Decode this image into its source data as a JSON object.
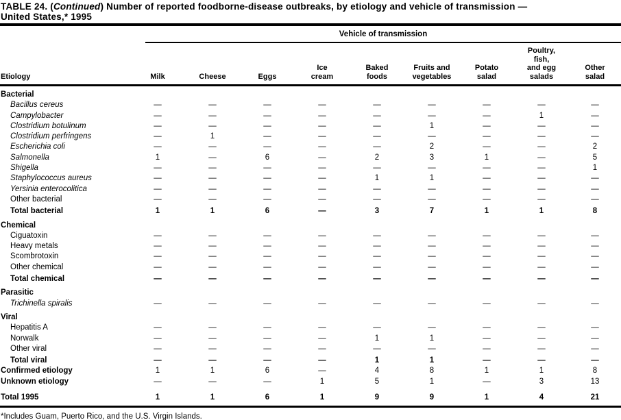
{
  "colors": {
    "ink": "#000000",
    "background": "#ffffff"
  },
  "title": {
    "prefix": "TABLE 24. (",
    "continued": "Continued",
    "rest": ") Number of reported foodborne-disease outbreaks, by etiology and vehicle of transmission —",
    "line2": "United States,* 1995"
  },
  "table": {
    "spanner": "Vehicle of transmission",
    "columns": [
      {
        "id": "etiology",
        "lines": [
          "Etiology"
        ]
      },
      {
        "id": "milk",
        "lines": [
          "Milk"
        ]
      },
      {
        "id": "cheese",
        "lines": [
          "Cheese"
        ]
      },
      {
        "id": "eggs",
        "lines": [
          "Eggs"
        ]
      },
      {
        "id": "ice-cream",
        "lines": [
          "Ice",
          "cream"
        ]
      },
      {
        "id": "baked-foods",
        "lines": [
          "Baked",
          "foods"
        ]
      },
      {
        "id": "fruits-and-vegetables",
        "lines": [
          "Fruits and",
          "vegetables"
        ]
      },
      {
        "id": "potato-salad",
        "lines": [
          "Potato",
          "salad"
        ]
      },
      {
        "id": "poultry-fish-and-egg-salads",
        "lines": [
          "Poultry,",
          "fish,",
          "and egg",
          "salads"
        ]
      },
      {
        "id": "other-salad",
        "lines": [
          "Other",
          "salad"
        ]
      }
    ],
    "rows": [
      {
        "type": "section",
        "label": "Bacterial"
      },
      {
        "type": "item",
        "italic": true,
        "label": "Bacillus cereus",
        "values": [
          "—",
          "—",
          "—",
          "—",
          "—",
          "—",
          "—",
          "—",
          "—"
        ]
      },
      {
        "type": "item",
        "italic": true,
        "label": "Campylobacter",
        "values": [
          "—",
          "—",
          "—",
          "—",
          "—",
          "—",
          "—",
          "1",
          "—"
        ]
      },
      {
        "type": "item",
        "italic": true,
        "label": "Clostridium botulinum",
        "values": [
          "—",
          "—",
          "—",
          "—",
          "—",
          "1",
          "—",
          "—",
          "—"
        ]
      },
      {
        "type": "item",
        "italic": true,
        "label": "Clostridium perfringens",
        "values": [
          "—",
          "1",
          "—",
          "—",
          "—",
          "—",
          "—",
          "—",
          "—"
        ]
      },
      {
        "type": "item",
        "italic": true,
        "label": "Escherichia coli",
        "values": [
          "—",
          "—",
          "—",
          "—",
          "—",
          "2",
          "—",
          "—",
          "2"
        ]
      },
      {
        "type": "item",
        "italic": true,
        "label": "Salmonella",
        "values": [
          "1",
          "—",
          "6",
          "—",
          "2",
          "3",
          "1",
          "—",
          "5"
        ]
      },
      {
        "type": "item",
        "italic": true,
        "label": "Shigella",
        "values": [
          "—",
          "—",
          "—",
          "—",
          "—",
          "—",
          "—",
          "—",
          "1"
        ]
      },
      {
        "type": "item",
        "italic": true,
        "label": "Staphylococcus aureus",
        "values": [
          "—",
          "—",
          "—",
          "—",
          "1",
          "1",
          "—",
          "—",
          "—"
        ]
      },
      {
        "type": "item",
        "italic": true,
        "label": "Yersinia enterocolitica",
        "values": [
          "—",
          "—",
          "—",
          "—",
          "—",
          "—",
          "—",
          "—",
          "—"
        ]
      },
      {
        "type": "item",
        "italic": false,
        "label": "Other bacterial",
        "values": [
          "—",
          "—",
          "—",
          "—",
          "—",
          "—",
          "—",
          "—",
          "—"
        ]
      },
      {
        "type": "total",
        "label": "Total bacterial",
        "values": [
          "1",
          "1",
          "6",
          "—",
          "3",
          "7",
          "1",
          "1",
          "8"
        ]
      },
      {
        "type": "section",
        "label": "Chemical"
      },
      {
        "type": "item",
        "italic": false,
        "label": "Ciguatoxin",
        "values": [
          "—",
          "—",
          "—",
          "—",
          "—",
          "—",
          "—",
          "—",
          "—"
        ]
      },
      {
        "type": "item",
        "italic": false,
        "label": "Heavy metals",
        "values": [
          "—",
          "—",
          "—",
          "—",
          "—",
          "—",
          "—",
          "—",
          "—"
        ]
      },
      {
        "type": "item",
        "italic": false,
        "label": "Scombrotoxin",
        "values": [
          "—",
          "—",
          "—",
          "—",
          "—",
          "—",
          "—",
          "—",
          "—"
        ]
      },
      {
        "type": "item",
        "italic": false,
        "label": "Other chemical",
        "values": [
          "—",
          "—",
          "—",
          "—",
          "—",
          "—",
          "—",
          "—",
          "—"
        ]
      },
      {
        "type": "total",
        "label": "Total chemical",
        "values": [
          "—",
          "—",
          "—",
          "—",
          "—",
          "—",
          "—",
          "—",
          "—"
        ]
      },
      {
        "type": "section",
        "label": "Parasitic"
      },
      {
        "type": "item",
        "italic": true,
        "label": "Trichinella spiralis",
        "values": [
          "—",
          "—",
          "—",
          "—",
          "—",
          "—",
          "—",
          "—",
          "—"
        ]
      },
      {
        "type": "section",
        "label": "Viral"
      },
      {
        "type": "item",
        "italic": false,
        "label": "Hepatitis A",
        "values": [
          "—",
          "—",
          "—",
          "—",
          "—",
          "—",
          "—",
          "—",
          "—"
        ]
      },
      {
        "type": "item",
        "italic": false,
        "label": "Norwalk",
        "values": [
          "—",
          "—",
          "—",
          "—",
          "1",
          "1",
          "—",
          "—",
          "—"
        ]
      },
      {
        "type": "item",
        "italic": false,
        "label": "Other viral",
        "values": [
          "—",
          "—",
          "—",
          "—",
          "—",
          "—",
          "—",
          "—",
          "—"
        ]
      },
      {
        "type": "total",
        "label": "Total viral",
        "values": [
          "—",
          "—",
          "—",
          "—",
          "1",
          "1",
          "—",
          "—",
          "—"
        ]
      },
      {
        "type": "summary",
        "label": "Confirmed etiology",
        "values": [
          "1",
          "1",
          "6",
          "—",
          "4",
          "8",
          "1",
          "1",
          "8"
        ]
      },
      {
        "type": "summary",
        "label": "Unknown etiology",
        "values": [
          "—",
          "—",
          "—",
          "1",
          "5",
          "1",
          "—",
          "3",
          "13"
        ]
      },
      {
        "type": "grand",
        "label": "Total 1995",
        "values": [
          "1",
          "1",
          "6",
          "1",
          "9",
          "9",
          "1",
          "4",
          "21"
        ]
      }
    ]
  },
  "footnote": "*Includes Guam, Puerto Rico, and the U.S. Virgin Islands."
}
